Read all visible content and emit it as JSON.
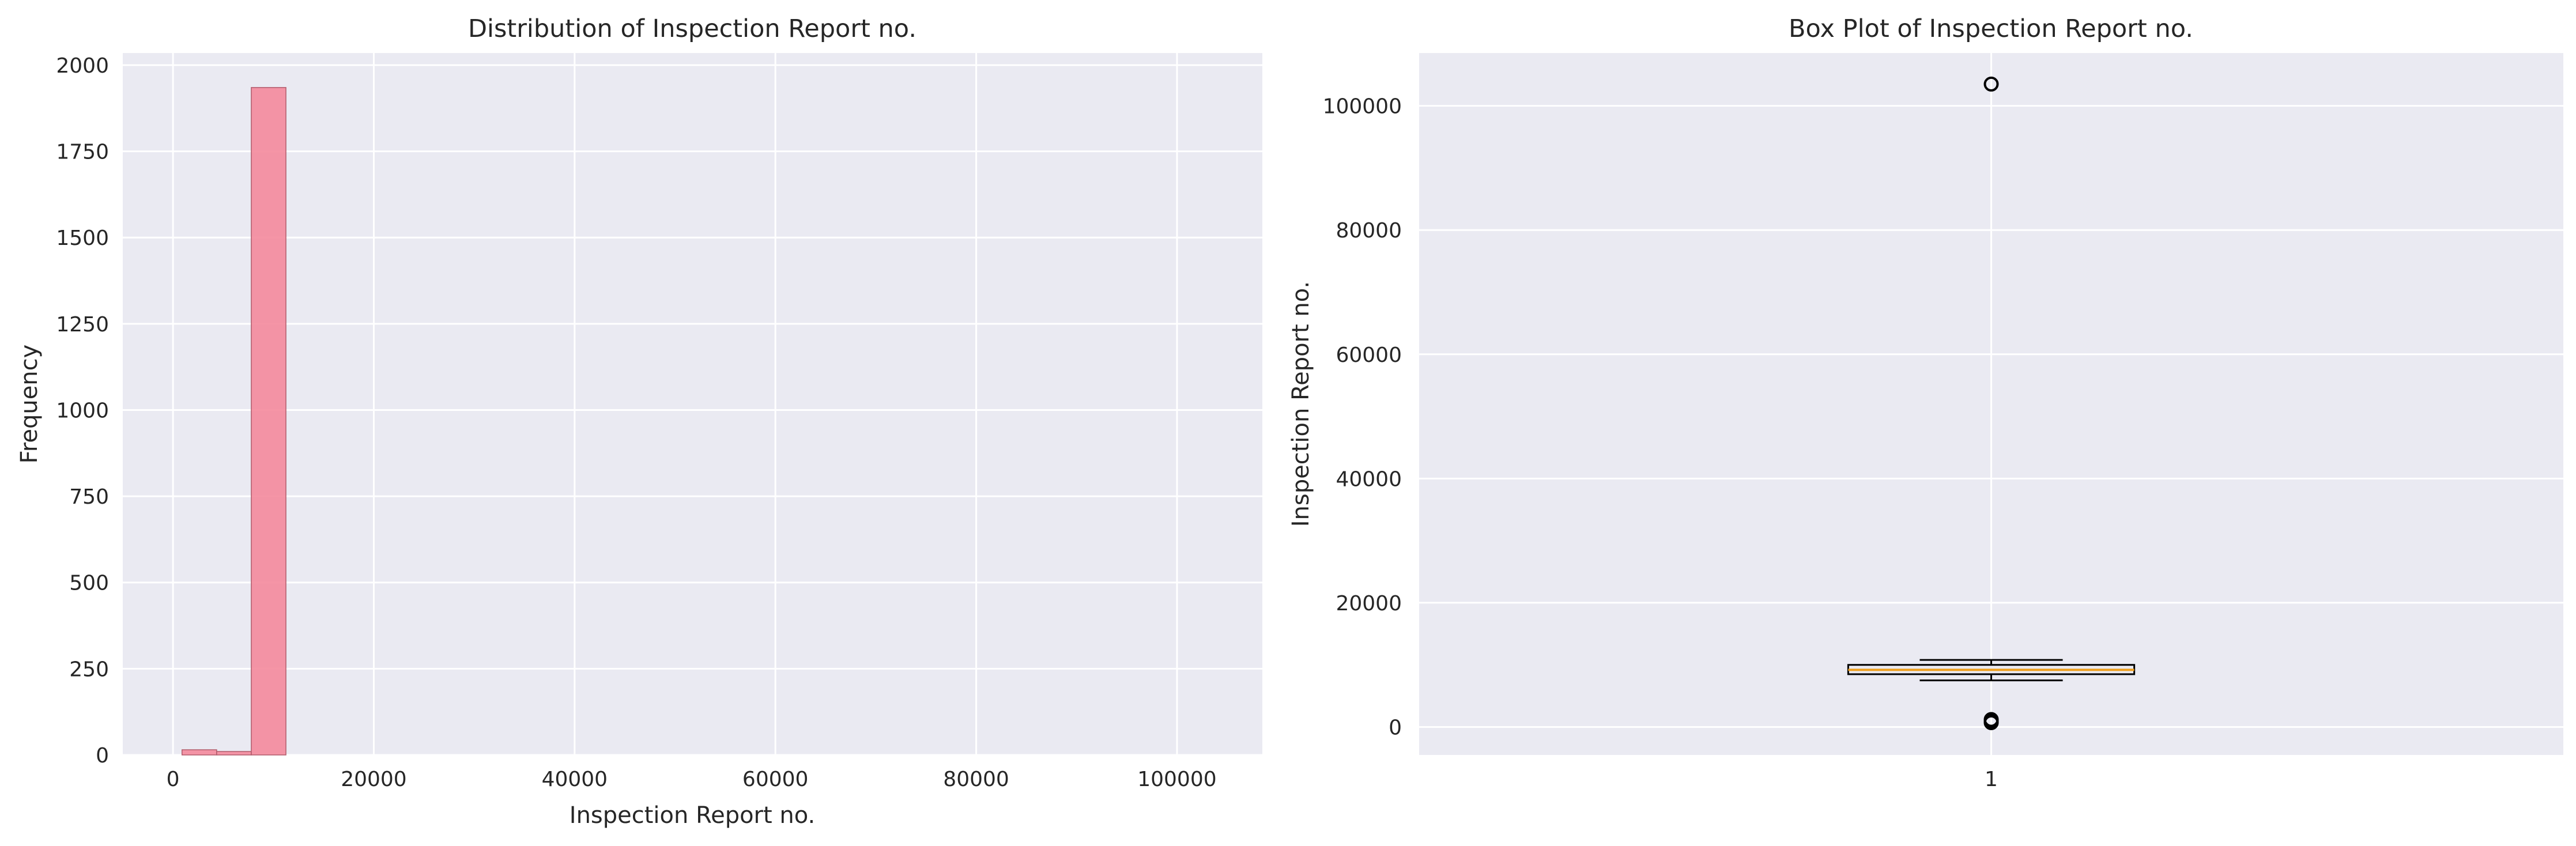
{
  "chart_data": [
    {
      "type": "bar",
      "title": "Distribution of Inspection Report no.",
      "xlabel": "Inspection Report no.",
      "ylabel": "Frequency",
      "xlim": [
        -5000,
        108500
      ],
      "ylim": [
        0,
        2035
      ],
      "x_ticks": [
        0,
        20000,
        40000,
        60000,
        80000,
        100000
      ],
      "x_tick_labels": [
        "0",
        "20000",
        "40000",
        "60000",
        "80000",
        "100000"
      ],
      "y_ticks": [
        0,
        250,
        500,
        750,
        1000,
        1250,
        1500,
        1750,
        2000
      ],
      "y_tick_labels": [
        "0",
        "250",
        "500",
        "750",
        "1000",
        "1250",
        "1500",
        "1750",
        "2000"
      ],
      "grid": true,
      "bar_color": "#f4899c",
      "bin_width": 3450,
      "bins": [
        {
          "x0": 900,
          "count": 15
        },
        {
          "x0": 4350,
          "count": 10
        },
        {
          "x0": 7800,
          "count": 1935
        }
      ]
    },
    {
      "type": "box",
      "title": "Box Plot of Inspection Report no.",
      "xlabel": "",
      "ylabel": "Inspection Report no.",
      "xlim": [
        0.5,
        1.5
      ],
      "ylim": [
        -4500,
        108500
      ],
      "x_ticks": [
        1
      ],
      "x_tick_labels": [
        "1"
      ],
      "y_ticks": [
        0,
        20000,
        40000,
        60000,
        80000,
        100000
      ],
      "y_tick_labels": [
        "0",
        "20000",
        "40000",
        "60000",
        "80000",
        "100000"
      ],
      "grid": true,
      "box": {
        "position": 1,
        "whisker_low": 7500,
        "q1": 8500,
        "median": 9200,
        "q3": 10000,
        "whisker_high": 10800,
        "outliers": [
          103500,
          1200,
          900,
          700
        ]
      },
      "median_color": "#f0a01e"
    }
  ],
  "style": {
    "axes_background": "#eaeaf2",
    "grid_color": "#ffffff",
    "text_color": "#262626"
  }
}
